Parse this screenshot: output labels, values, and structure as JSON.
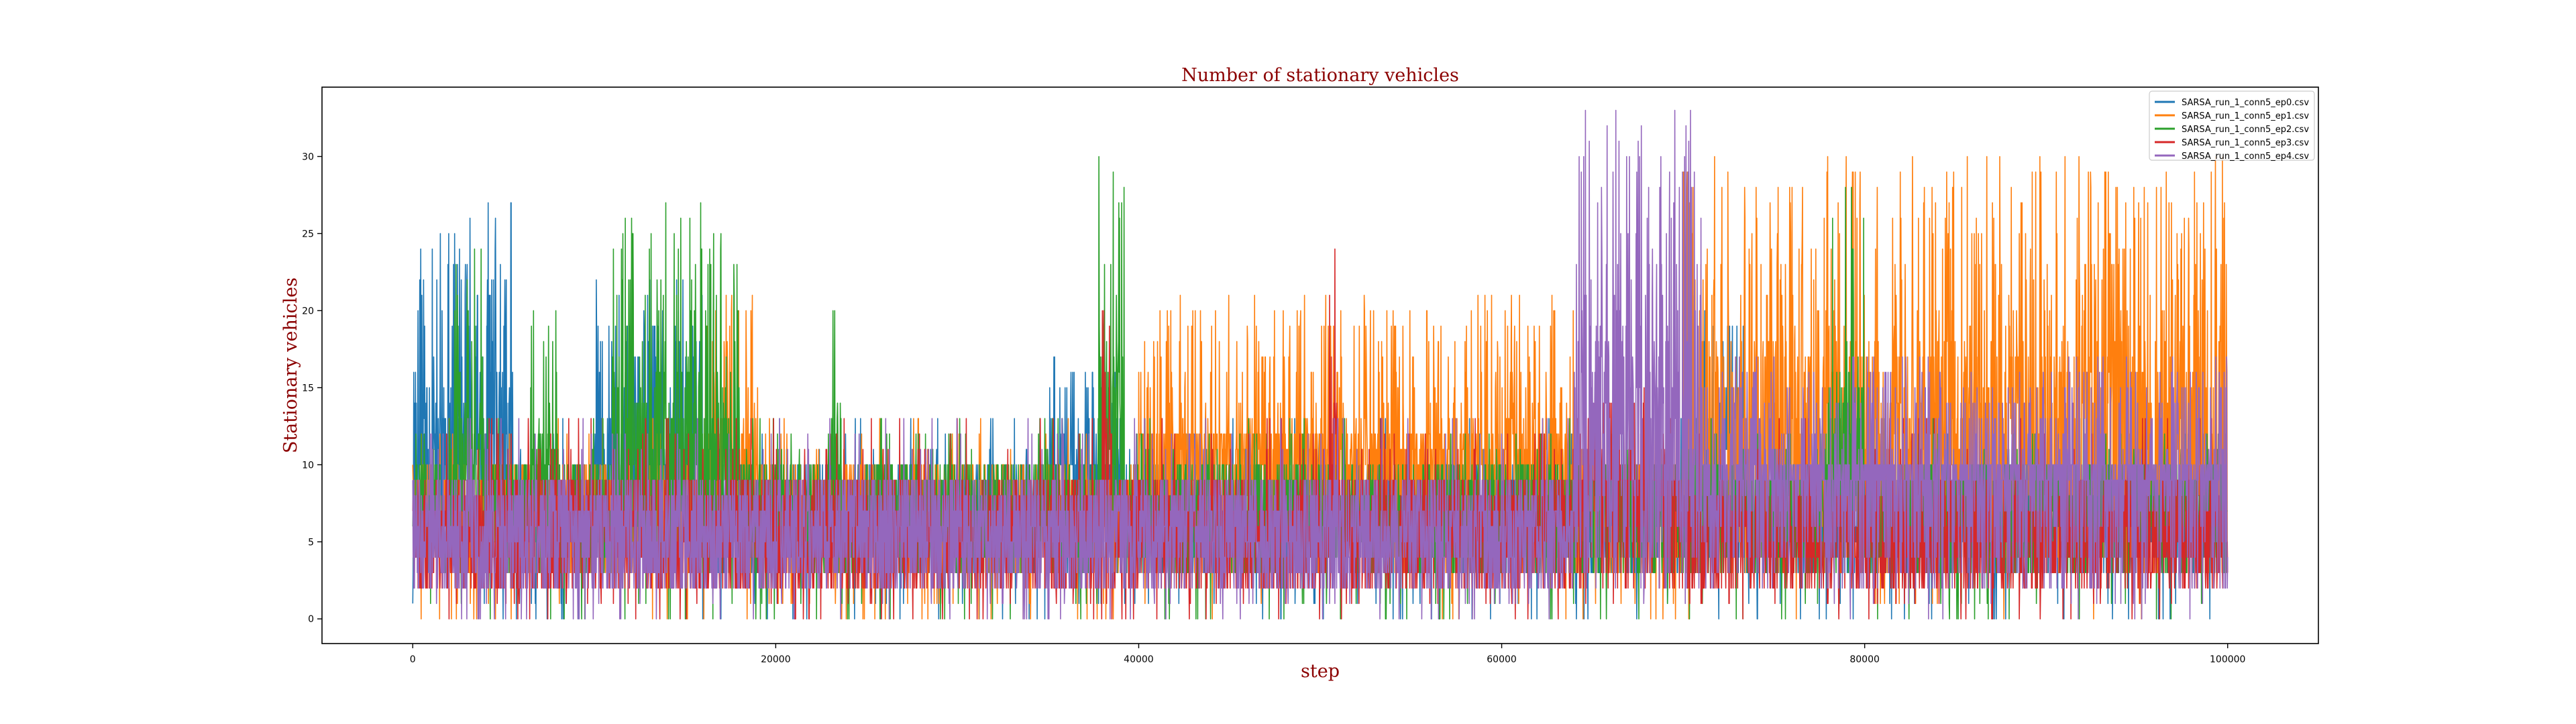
{
  "chart_data": {
    "type": "line",
    "title": "Number of stationary vehicles",
    "xlabel": "step",
    "ylabel": "Stationary vehicles",
    "xlim": [
      -5000,
      105000
    ],
    "ylim": [
      -1.6,
      34.5
    ],
    "xticks": [
      0,
      20000,
      40000,
      60000,
      80000,
      100000
    ],
    "yticks": [
      0,
      5,
      10,
      15,
      20,
      25,
      30
    ],
    "grid": false,
    "legend_position": "top-right",
    "label_color": "#8b0000",
    "series": [
      {
        "name": "SARSA_run_1_conn5_ep0.csv",
        "color": "#1f77b4",
        "base": [
          3,
          10
        ],
        "bursts": [
          {
            "from": 0,
            "to": 5500,
            "peak": 27
          },
          {
            "from": 10000,
            "to": 16000,
            "peak": 22
          },
          {
            "from": 34500,
            "to": 39000,
            "peak": 17
          },
          {
            "from": 71000,
            "to": 73500,
            "peak": 20
          }
        ]
      },
      {
        "name": "SARSA_run_1_conn5_ep1.csv",
        "color": "#ff7f0e",
        "base": [
          3,
          10
        ],
        "bursts": [
          {
            "from": 16000,
            "to": 19000,
            "peak": 21
          },
          {
            "from": 40000,
            "to": 64000,
            "peak": 21
          },
          {
            "from": 70000,
            "to": 100000,
            "peak": 30
          }
        ]
      },
      {
        "name": "SARSA_run_1_conn5_ep2.csv",
        "color": "#2ca02c",
        "base": [
          3,
          10
        ],
        "bursts": [
          {
            "from": 2000,
            "to": 4000,
            "peak": 24
          },
          {
            "from": 6500,
            "to": 8000,
            "peak": 20
          },
          {
            "from": 11000,
            "to": 18000,
            "peak": 27
          },
          {
            "from": 23000,
            "to": 23600,
            "peak": 20
          },
          {
            "from": 37800,
            "to": 39200,
            "peak": 30
          },
          {
            "from": 78000,
            "to": 80000,
            "peak": 28
          }
        ]
      },
      {
        "name": "SARSA_run_1_conn5_ep3.csv",
        "color": "#d62728",
        "base": [
          2,
          9
        ],
        "bursts": [
          {
            "from": 38000,
            "to": 38500,
            "peak": 22
          },
          {
            "from": 50500,
            "to": 51000,
            "peak": 24
          },
          {
            "from": 64000,
            "to": 70000,
            "peak": 15
          }
        ]
      },
      {
        "name": "SARSA_run_1_conn5_ep4.csv",
        "color": "#9467bd",
        "base": [
          2,
          9
        ],
        "bursts": [
          {
            "from": 64000,
            "to": 71000,
            "peak": 33
          },
          {
            "from": 71000,
            "to": 100000,
            "peak": 17
          }
        ]
      }
    ]
  }
}
